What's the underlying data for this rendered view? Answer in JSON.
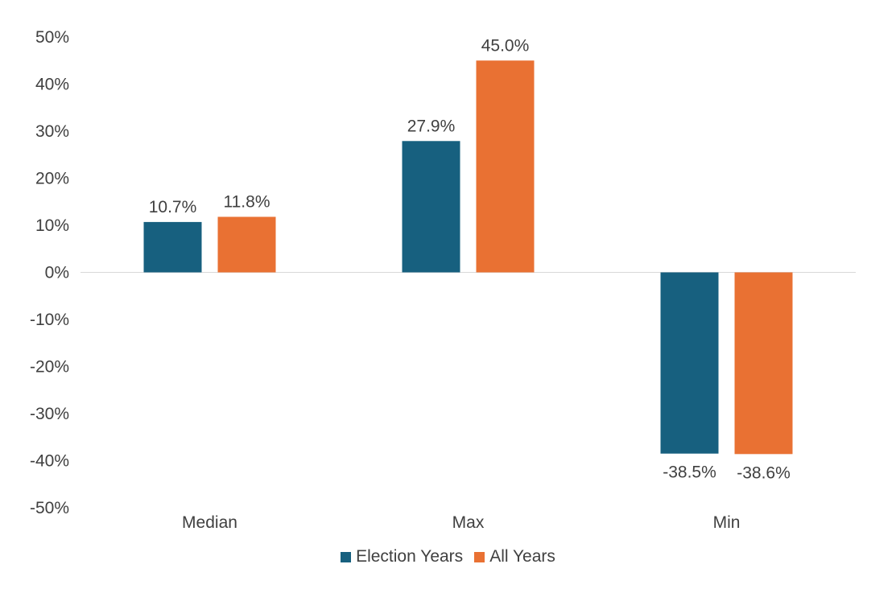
{
  "chart_data": {
    "type": "bar",
    "categories": [
      "Median",
      "Max",
      "Min"
    ],
    "series": [
      {
        "name": "Election Years",
        "values": [
          10.7,
          27.9,
          -38.5
        ],
        "labels": [
          "10.7%",
          "27.9%",
          "-38.5%"
        ],
        "color": "#17607f"
      },
      {
        "name": "All Years",
        "values": [
          11.8,
          45.0,
          -38.6
        ],
        "labels": [
          "11.8%",
          "45.0%",
          "-38.6%"
        ],
        "color": "#e97133"
      }
    ],
    "ylim": [
      -50,
      50
    ],
    "yticks": [
      50,
      40,
      30,
      20,
      10,
      0,
      -10,
      -20,
      -30,
      -40,
      -50
    ],
    "ytick_labels": [
      "50%",
      "40%",
      "30%",
      "20%",
      "10%",
      "0%",
      "-10%",
      "-20%",
      "-30%",
      "-40%",
      "-50%"
    ],
    "title": "",
    "xlabel": "",
    "ylabel": "",
    "grid": false,
    "legend": {
      "placement": "bottom",
      "entries": [
        "Election Years",
        "All Years"
      ]
    }
  }
}
